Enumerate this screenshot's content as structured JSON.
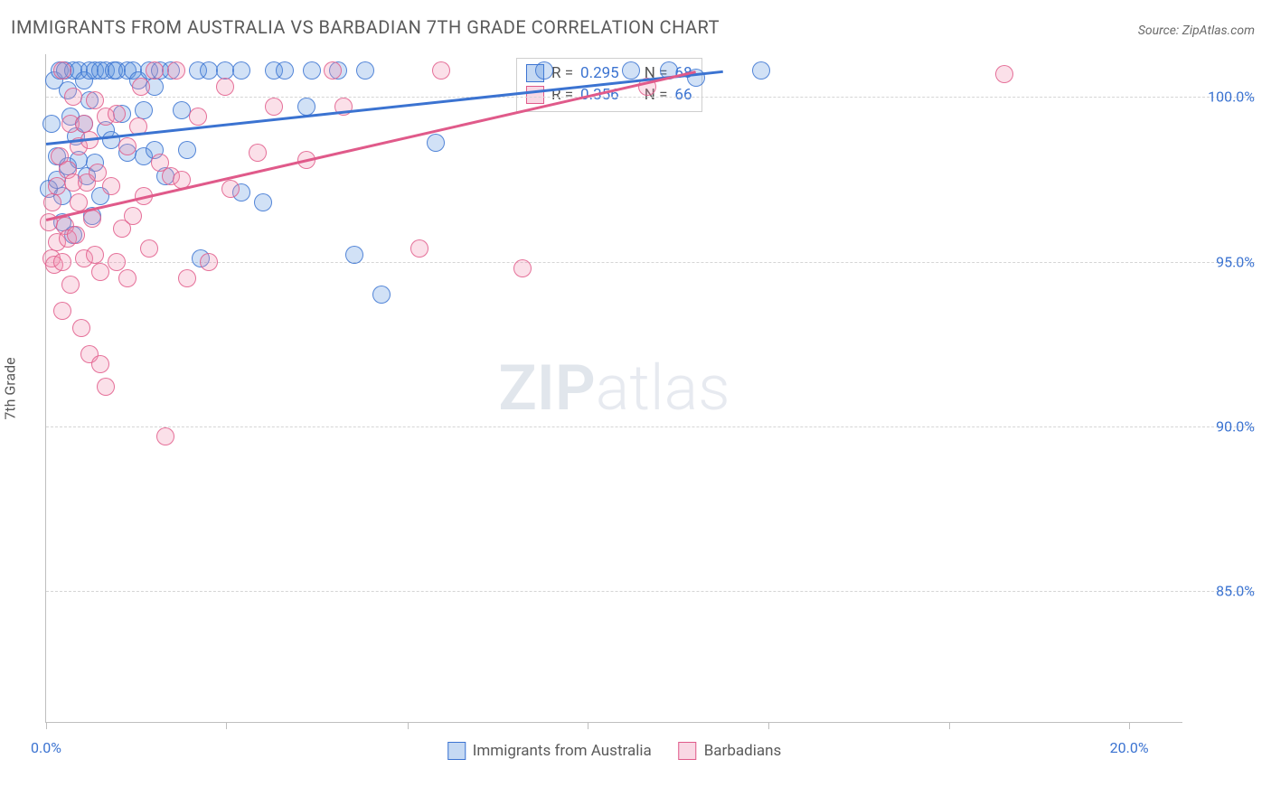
{
  "title": "IMMIGRANTS FROM AUSTRALIA VS BARBADIAN 7TH GRADE CORRELATION CHART",
  "source_label": "Source: ZipAtlas.com",
  "watermark": {
    "bold": "ZIP",
    "rest": "atlas"
  },
  "chart": {
    "type": "scatter",
    "background_color": "#ffffff",
    "grid_color": "#d5d5d5",
    "axis_color": "#bfbfbf",
    "ylabel": "7th Grade",
    "ylabel_fontsize": 16,
    "title_fontsize": 20,
    "tick_label_color": "#3b73d1",
    "tick_fontsize": 16,
    "xlim": [
      0,
      21
    ],
    "ylim": [
      81,
      101.3
    ],
    "x_ticks": [
      0,
      10,
      20
    ],
    "x_tick_labels": [
      "0.0%",
      "",
      "20.0%"
    ],
    "x_minor_ticks": [
      3.33,
      6.67,
      13.33,
      16.67
    ],
    "y_ticks": [
      85,
      90,
      95,
      100
    ],
    "y_tick_labels": [
      "85.0%",
      "90.0%",
      "95.0%",
      "100.0%"
    ],
    "marker_radius": 10,
    "marker_fill_opacity": 0.28,
    "marker_stroke_opacity": 0.85,
    "trend_width": 2.5,
    "series": [
      {
        "key": "aus",
        "label": "Immigrants from Australia",
        "color": "#5a93dd",
        "stroke": "#3b73d1",
        "R": "0.295",
        "N": "68",
        "trend": {
          "x1": 0,
          "y1": 98.6,
          "x2": 12.5,
          "y2": 100.8
        },
        "points": [
          [
            0.05,
            97.2
          ],
          [
            0.1,
            99.2
          ],
          [
            0.15,
            100.5
          ],
          [
            0.2,
            98.2
          ],
          [
            0.2,
            97.5
          ],
          [
            0.25,
            100.8
          ],
          [
            0.3,
            97.0
          ],
          [
            0.3,
            96.2
          ],
          [
            0.35,
            100.8
          ],
          [
            0.4,
            100.2
          ],
          [
            0.4,
            97.9
          ],
          [
            0.45,
            99.4
          ],
          [
            0.5,
            95.8
          ],
          [
            0.5,
            100.8
          ],
          [
            0.55,
            98.8
          ],
          [
            0.6,
            100.8
          ],
          [
            0.6,
            98.1
          ],
          [
            0.7,
            100.5
          ],
          [
            0.7,
            99.2
          ],
          [
            0.75,
            97.6
          ],
          [
            0.8,
            100.8
          ],
          [
            0.8,
            99.9
          ],
          [
            0.85,
            96.4
          ],
          [
            0.9,
            100.8
          ],
          [
            0.9,
            98.0
          ],
          [
            1.0,
            100.8
          ],
          [
            1.0,
            97.0
          ],
          [
            1.1,
            100.8
          ],
          [
            1.1,
            99.0
          ],
          [
            1.2,
            98.7
          ],
          [
            1.25,
            100.8
          ],
          [
            1.3,
            100.8
          ],
          [
            1.4,
            99.5
          ],
          [
            1.5,
            98.3
          ],
          [
            1.5,
            100.8
          ],
          [
            1.6,
            100.8
          ],
          [
            1.7,
            100.5
          ],
          [
            1.8,
            98.2
          ],
          [
            1.8,
            99.6
          ],
          [
            1.9,
            100.8
          ],
          [
            2.0,
            100.3
          ],
          [
            2.0,
            98.4
          ],
          [
            2.1,
            100.8
          ],
          [
            2.2,
            97.6
          ],
          [
            2.3,
            100.8
          ],
          [
            2.5,
            99.6
          ],
          [
            2.6,
            98.4
          ],
          [
            2.8,
            100.8
          ],
          [
            2.85,
            95.1
          ],
          [
            3.0,
            100.8
          ],
          [
            3.3,
            100.8
          ],
          [
            3.6,
            100.8
          ],
          [
            3.6,
            97.1
          ],
          [
            4.0,
            96.8
          ],
          [
            4.2,
            100.8
          ],
          [
            4.4,
            100.8
          ],
          [
            4.8,
            99.7
          ],
          [
            4.9,
            100.8
          ],
          [
            5.4,
            100.8
          ],
          [
            5.7,
            95.2
          ],
          [
            5.9,
            100.8
          ],
          [
            6.2,
            94.0
          ],
          [
            7.2,
            98.6
          ],
          [
            9.2,
            100.8
          ],
          [
            10.8,
            100.8
          ],
          [
            11.5,
            100.8
          ],
          [
            12.0,
            100.6
          ],
          [
            13.2,
            100.8
          ]
        ]
      },
      {
        "key": "bar",
        "label": "Barbadians",
        "color": "#ef8fb1",
        "stroke": "#e05a8a",
        "R": "0.356",
        "N": "66",
        "trend": {
          "x1": 0,
          "y1": 96.3,
          "x2": 12.0,
          "y2": 100.8
        },
        "points": [
          [
            0.05,
            96.2
          ],
          [
            0.1,
            95.1
          ],
          [
            0.12,
            96.8
          ],
          [
            0.15,
            94.9
          ],
          [
            0.2,
            95.6
          ],
          [
            0.2,
            97.3
          ],
          [
            0.25,
            98.2
          ],
          [
            0.3,
            95.0
          ],
          [
            0.3,
            93.5
          ],
          [
            0.3,
            100.8
          ],
          [
            0.35,
            96.1
          ],
          [
            0.4,
            97.8
          ],
          [
            0.4,
            95.7
          ],
          [
            0.45,
            99.2
          ],
          [
            0.45,
            94.3
          ],
          [
            0.5,
            97.4
          ],
          [
            0.5,
            100.0
          ],
          [
            0.55,
            95.8
          ],
          [
            0.6,
            96.8
          ],
          [
            0.6,
            98.5
          ],
          [
            0.65,
            93.0
          ],
          [
            0.7,
            99.2
          ],
          [
            0.7,
            95.1
          ],
          [
            0.75,
            97.4
          ],
          [
            0.8,
            98.7
          ],
          [
            0.8,
            92.2
          ],
          [
            0.85,
            96.3
          ],
          [
            0.9,
            99.9
          ],
          [
            0.9,
            95.2
          ],
          [
            0.95,
            97.7
          ],
          [
            1.0,
            94.7
          ],
          [
            1.0,
            91.9
          ],
          [
            1.1,
            99.4
          ],
          [
            1.1,
            91.2
          ],
          [
            1.2,
            97.3
          ],
          [
            1.3,
            95.0
          ],
          [
            1.3,
            99.5
          ],
          [
            1.4,
            96.0
          ],
          [
            1.5,
            98.5
          ],
          [
            1.5,
            94.5
          ],
          [
            1.6,
            96.4
          ],
          [
            1.7,
            99.1
          ],
          [
            1.75,
            100.3
          ],
          [
            1.8,
            97.0
          ],
          [
            1.9,
            95.4
          ],
          [
            2.0,
            100.8
          ],
          [
            2.1,
            98.0
          ],
          [
            2.2,
            89.7
          ],
          [
            2.3,
            97.6
          ],
          [
            2.4,
            100.8
          ],
          [
            2.5,
            97.5
          ],
          [
            2.6,
            94.5
          ],
          [
            2.8,
            99.4
          ],
          [
            3.0,
            95.0
          ],
          [
            3.3,
            100.3
          ],
          [
            3.4,
            97.2
          ],
          [
            3.9,
            98.3
          ],
          [
            4.2,
            99.7
          ],
          [
            4.8,
            98.1
          ],
          [
            5.3,
            100.8
          ],
          [
            5.5,
            99.7
          ],
          [
            6.9,
            95.4
          ],
          [
            7.3,
            100.8
          ],
          [
            8.8,
            94.8
          ],
          [
            11.1,
            100.3
          ],
          [
            17.7,
            100.7
          ]
        ]
      }
    ],
    "legend_top_labels": {
      "R": "R =",
      "N": "N ="
    },
    "legend_bottom_position": "bottom-center"
  }
}
